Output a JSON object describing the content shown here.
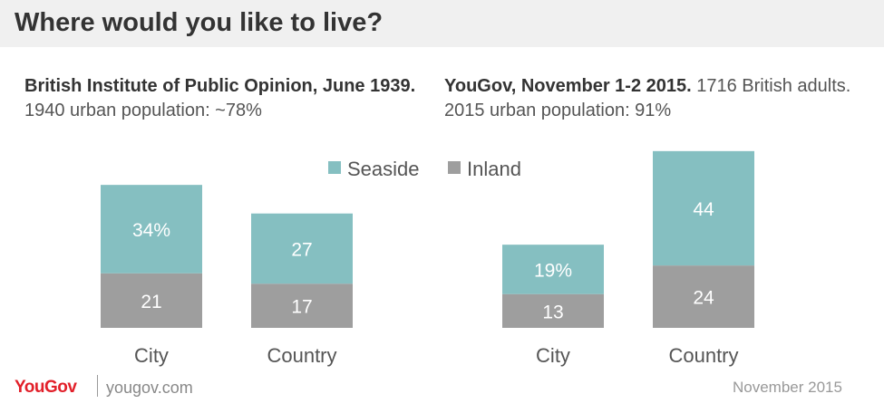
{
  "title": "Where would you like to live?",
  "subtitles": [
    {
      "bold": "British Institute of Public Opinion, June 1939.",
      "normal": " 1940 urban population: ~78%"
    },
    {
      "bold": "YouGov, November 1-2 2015.",
      "normal": " 1716 British adults. 2015 urban population: 91%"
    }
  ],
  "colors": {
    "seaside": "#85bfc1",
    "inland": "#9e9e9e",
    "label": "#ffffff",
    "axis_text": "#555555"
  },
  "chart_data": [
    {
      "type": "bar",
      "stacked": true,
      "categories": [
        "City",
        "Country"
      ],
      "series": [
        {
          "name": "Inland",
          "values": [
            21,
            17
          ],
          "labels": [
            "21",
            "17"
          ]
        },
        {
          "name": "Seaside",
          "values": [
            34,
            27
          ],
          "labels": [
            "34%",
            "27"
          ]
        }
      ]
    },
    {
      "type": "bar",
      "stacked": true,
      "categories": [
        "City",
        "Country"
      ],
      "series": [
        {
          "name": "Inland",
          "values": [
            13,
            24
          ],
          "labels": [
            "13",
            "24"
          ]
        },
        {
          "name": "Seaside",
          "values": [
            19,
            44
          ],
          "labels": [
            "19%",
            "44"
          ]
        }
      ]
    }
  ],
  "legend": {
    "items": [
      "Seaside",
      "Inland"
    ]
  },
  "footer": {
    "logo": "YouGov",
    "site": "yougov.com",
    "date": "November 2015"
  }
}
